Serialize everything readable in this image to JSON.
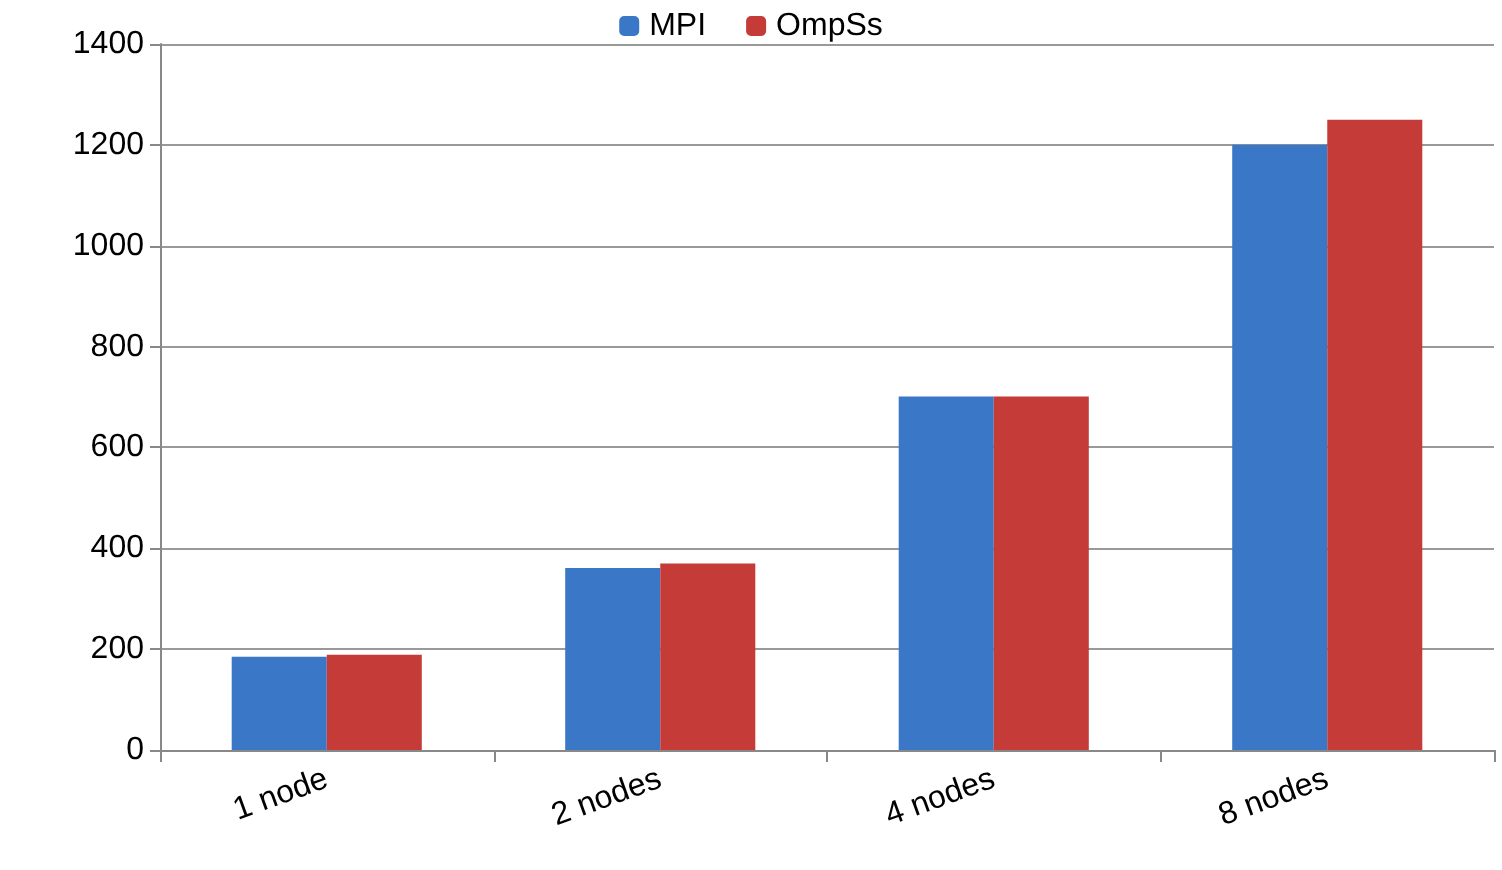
{
  "chart_data": {
    "type": "bar",
    "categories": [
      "1 node",
      "2 nodes",
      "4 nodes",
      "8 nodes"
    ],
    "series": [
      {
        "name": "MPI",
        "color": "#3a77c6",
        "values": [
          185,
          361,
          701,
          1200
        ]
      },
      {
        "name": "OmpSs",
        "color": "#c43b38",
        "values": [
          189,
          370,
          701,
          1250
        ]
      }
    ],
    "ylim": [
      0,
      1400
    ],
    "yticks": [
      0,
      200,
      400,
      600,
      800,
      1000,
      1200,
      1400
    ],
    "grid": "y",
    "legend": "top"
  }
}
